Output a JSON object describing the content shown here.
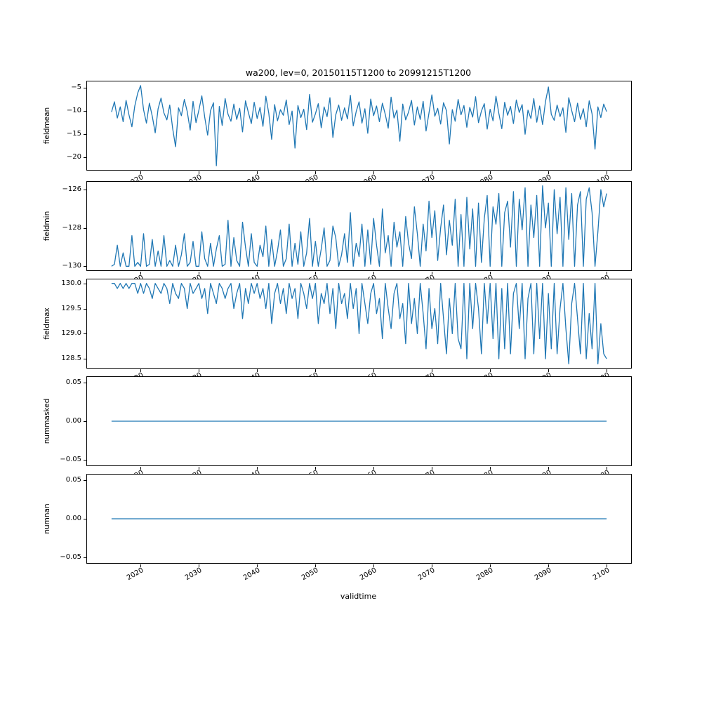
{
  "chart_data": {
    "type": "line",
    "title": "wa200, lev=0, 20150115T1200 to 20991215T1200",
    "xlabel": "validtime",
    "line_color": "#1f77b4",
    "grid": false,
    "legend": "none",
    "xlim": [
      2010.8,
      2104.2
    ],
    "x_ticks": [
      2020,
      2030,
      2040,
      2050,
      2060,
      2070,
      2080,
      2090,
      2100
    ],
    "x_start": 2015.0,
    "x_step": 0.5,
    "x_end": 2100.0,
    "panels": [
      {
        "ylabel": "fieldmean",
        "y_tick_vals": [
          -5,
          -10,
          -15,
          -20
        ],
        "y_tick_labels": [
          "−5",
          "−10",
          "−15",
          "−20"
        ],
        "ylim": [
          -22.8,
          -3.7
        ],
        "values": [
          -10.3,
          -8.1,
          -11.6,
          -9.2,
          -12.4,
          -7.8,
          -10.9,
          -13.5,
          -9.0,
          -6.2,
          -4.6,
          -9.8,
          -12.7,
          -8.4,
          -11.2,
          -14.8,
          -9.6,
          -7.3,
          -10.5,
          -12.0,
          -8.8,
          -13.9,
          -17.8,
          -9.4,
          -11.1,
          -7.6,
          -10.2,
          -14.2,
          -8.0,
          -12.6,
          -9.9,
          -6.8,
          -11.4,
          -15.3,
          -10.0,
          -8.3,
          -21.9,
          -9.1,
          -13.2,
          -7.4,
          -10.8,
          -12.3,
          -8.6,
          -11.9,
          -9.5,
          -14.6,
          -7.9,
          -10.4,
          -12.8,
          -8.2,
          -11.7,
          -9.3,
          -13.4,
          -6.9,
          -10.6,
          -16.2,
          -8.7,
          -12.2,
          -9.8,
          -11.0,
          -7.7,
          -13.0,
          -10.1,
          -18.1,
          -8.9,
          -11.5,
          -9.7,
          -14.1,
          -6.5,
          -12.5,
          -10.7,
          -8.5,
          -13.7,
          -9.2,
          -11.3,
          -7.2,
          -15.8,
          -10.9,
          -8.8,
          -12.1,
          -9.4,
          -11.8,
          -6.7,
          -13.3,
          -10.2,
          -8.1,
          -12.7,
          -9.6,
          -14.9,
          -7.5,
          -11.1,
          -9.0,
          -12.4,
          -8.4,
          -10.8,
          -13.8,
          -7.1,
          -11.6,
          -9.9,
          -16.6,
          -8.6,
          -12.0,
          -10.3,
          -7.8,
          -13.1,
          -9.2,
          -11.9,
          -8.0,
          -14.4,
          -10.5,
          -6.6,
          -11.2,
          -9.5,
          -12.9,
          -8.3,
          -10.0,
          -17.2,
          -9.8,
          -12.3,
          -7.6,
          -10.9,
          -8.9,
          -13.6,
          -9.3,
          -11.4,
          -7.0,
          -12.6,
          -10.1,
          -8.5,
          -14.0,
          -9.7,
          -12.2,
          -6.9,
          -10.6,
          -13.9,
          -8.2,
          -11.0,
          -9.1,
          -12.8,
          -7.7,
          -10.4,
          -8.7,
          -15.1,
          -9.9,
          -11.7,
          -7.4,
          -12.5,
          -9.0,
          -13.0,
          -8.1,
          -4.9,
          -10.8,
          -12.1,
          -8.8,
          -11.3,
          -9.4,
          -14.7,
          -7.2,
          -10.0,
          -12.4,
          -8.4,
          -11.9,
          -9.6,
          -13.5,
          -7.9,
          -10.7,
          -18.3,
          -9.2,
          -11.5,
          -8.6,
          -10.2
        ]
      },
      {
        "ylabel": "fieldmin",
        "y_tick_vals": [
          -126,
          -128,
          -130
        ],
        "y_tick_labels": [
          "−126",
          "−128",
          "−130"
        ],
        "ylim": [
          -130.21,
          -125.59
        ],
        "values": [
          -130.0,
          -129.9,
          -128.9,
          -130.0,
          -129.3,
          -130.0,
          -130.0,
          -128.4,
          -130.0,
          -129.8,
          -130.0,
          -128.3,
          -130.0,
          -129.9,
          -128.6,
          -130.0,
          -129.2,
          -130.0,
          -128.4,
          -130.0,
          -129.7,
          -130.0,
          -128.9,
          -130.0,
          -129.4,
          -128.3,
          -130.0,
          -129.8,
          -128.7,
          -130.0,
          -130.0,
          -128.2,
          -129.6,
          -130.0,
          -128.8,
          -130.0,
          -129.1,
          -128.4,
          -130.0,
          -129.9,
          -127.6,
          -130.0,
          -128.5,
          -129.7,
          -130.0,
          -127.7,
          -129.0,
          -130.0,
          -128.3,
          -129.8,
          -130.0,
          -128.9,
          -129.5,
          -127.9,
          -130.0,
          -128.6,
          -130.0,
          -129.2,
          -128.1,
          -130.0,
          -129.6,
          -127.8,
          -130.0,
          -128.8,
          -129.9,
          -128.2,
          -130.0,
          -129.3,
          -127.5,
          -130.0,
          -128.7,
          -130.0,
          -129.1,
          -128.0,
          -130.0,
          -129.7,
          -127.9,
          -128.5,
          -130.0,
          -129.4,
          -128.3,
          -129.8,
          -127.2,
          -130.0,
          -128.8,
          -129.5,
          -127.8,
          -130.0,
          -128.1,
          -129.9,
          -127.5,
          -128.9,
          -130.0,
          -127.0,
          -129.3,
          -128.4,
          -130.0,
          -127.7,
          -129.0,
          -128.2,
          -130.0,
          -127.4,
          -128.8,
          -129.6,
          -126.9,
          -128.3,
          -130.0,
          -127.8,
          -129.2,
          -126.6,
          -128.5,
          -127.1,
          -129.7,
          -128.0,
          -126.8,
          -129.4,
          -127.6,
          -128.9,
          -126.5,
          -130.0,
          -127.3,
          -130.0,
          -126.4,
          -129.1,
          -127.0,
          -130.0,
          -126.7,
          -129.8,
          -127.5,
          -126.3,
          -130.0,
          -126.9,
          -127.8,
          -126.2,
          -130.0,
          -127.2,
          -126.6,
          -129.0,
          -126.1,
          -130.0,
          -126.5,
          -128.1,
          -125.9,
          -130.0,
          -126.8,
          -128.5,
          -126.3,
          -130.0,
          -125.8,
          -128.0,
          -126.7,
          -130.0,
          -126.0,
          -128.3,
          -126.4,
          -130.0,
          -125.9,
          -128.6,
          -126.2,
          -130.0,
          -126.8,
          -126.1,
          -130.0,
          -126.5,
          -125.9,
          -127.2,
          -130.0,
          -128.2,
          -126.0,
          -126.9,
          -126.2
        ]
      },
      {
        "ylabel": "fieldmax",
        "y_tick_vals": [
          130.0,
          129.5,
          129.0,
          128.5
        ],
        "y_tick_labels": [
          "130.0",
          "129.5",
          "129.0",
          "128.5"
        ],
        "ylim": [
          128.32,
          130.08
        ],
        "values": [
          130.0,
          130.0,
          129.9,
          130.0,
          129.9,
          130.0,
          129.9,
          130.0,
          130.0,
          129.8,
          130.0,
          129.8,
          130.0,
          129.9,
          129.7,
          130.0,
          129.9,
          129.8,
          130.0,
          129.9,
          129.6,
          130.0,
          129.8,
          129.7,
          130.0,
          129.9,
          129.5,
          130.0,
          129.8,
          129.9,
          130.0,
          129.7,
          129.9,
          129.4,
          130.0,
          129.8,
          129.6,
          130.0,
          129.9,
          129.7,
          129.9,
          130.0,
          129.5,
          129.8,
          130.0,
          129.3,
          129.9,
          129.6,
          130.0,
          129.8,
          130.0,
          129.7,
          129.9,
          129.5,
          130.0,
          129.2,
          129.8,
          130.0,
          129.6,
          129.9,
          129.4,
          130.0,
          129.7,
          129.9,
          129.3,
          130.0,
          129.8,
          129.5,
          130.0,
          129.7,
          130.0,
          129.2,
          129.8,
          129.6,
          130.0,
          129.4,
          129.9,
          129.1,
          130.0,
          129.6,
          129.8,
          129.3,
          130.0,
          129.5,
          129.9,
          129.0,
          130.0,
          129.6,
          129.2,
          129.8,
          130.0,
          129.4,
          129.7,
          128.9,
          130.0,
          129.5,
          129.1,
          129.8,
          130.0,
          129.3,
          129.6,
          128.8,
          130.0,
          129.2,
          129.7,
          129.0,
          130.0,
          129.4,
          128.7,
          129.9,
          129.1,
          129.5,
          128.8,
          130.0,
          129.3,
          128.6,
          129.7,
          129.0,
          130.0,
          128.9,
          128.7,
          130.0,
          128.5,
          130.0,
          129.1,
          130.0,
          129.5,
          128.6,
          130.0,
          129.2,
          130.0,
          128.9,
          130.0,
          128.5,
          129.9,
          128.7,
          130.0,
          128.6,
          129.8,
          130.0,
          129.1,
          130.0,
          128.5,
          129.7,
          130.0,
          128.6,
          130.0,
          128.9,
          130.0,
          128.5,
          129.8,
          128.7,
          130.0,
          128.6,
          129.5,
          130.0,
          129.1,
          128.4,
          129.6,
          130.0,
          129.3,
          128.6,
          130.0,
          128.5,
          129.4,
          128.7,
          130.0,
          128.4,
          129.2,
          128.6,
          128.5
        ]
      },
      {
        "ylabel": "nummasked",
        "y_tick_vals": [
          0.05,
          0.0,
          -0.05
        ],
        "y_tick_labels": [
          "0.05",
          "0.00",
          "−0.05"
        ],
        "ylim": [
          -0.0575,
          0.0575
        ],
        "constant": 0.0
      },
      {
        "ylabel": "numnan",
        "y_tick_vals": [
          0.05,
          0.0,
          -0.05
        ],
        "y_tick_labels": [
          "0.05",
          "0.00",
          "−0.05"
        ],
        "ylim": [
          -0.0575,
          0.0575
        ],
        "constant": 0.0
      }
    ]
  }
}
